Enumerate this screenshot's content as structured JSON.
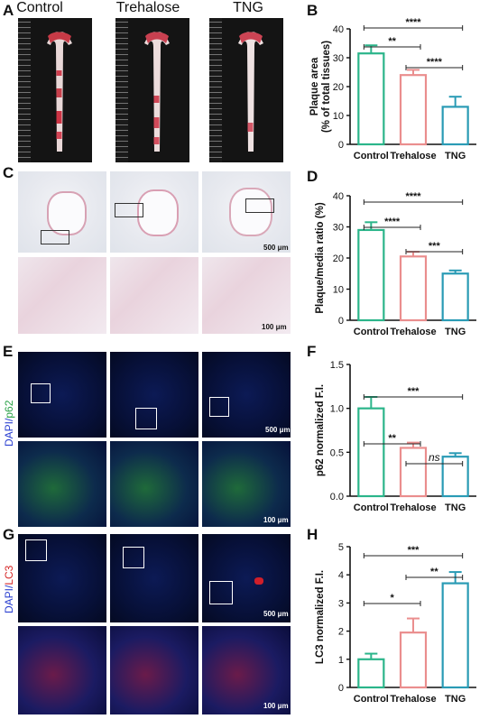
{
  "panels": {
    "A": "A",
    "B": "B",
    "C": "C",
    "D": "D",
    "E": "E",
    "F": "F",
    "G": "G",
    "H": "H"
  },
  "groups": [
    "Control",
    "Trehalose",
    "TNG"
  ],
  "stain_labels": {
    "E_dapi": "DAPI/",
    "E_marker": "p62",
    "G_dapi": "DAPI/",
    "G_marker": "LC3"
  },
  "scalebars": {
    "C_top": "500 μm",
    "C_bottom": "100 μm",
    "E_top": "500 μm",
    "E_bottom": "100 μm",
    "G_top": "500 μm",
    "G_bottom": "100 μm"
  },
  "colors": {
    "control": "#2bb58a",
    "trehalose": "#ea8e8e",
    "tng": "#2a9bb5"
  },
  "chart_data": [
    {
      "panel": "B",
      "type": "bar",
      "ylabel": "Plaque area (% of total tissues)",
      "categories": [
        "Control",
        "Trehalose",
        "TNG"
      ],
      "values": [
        31.5,
        24,
        13
      ],
      "errors": [
        2.8,
        1.8,
        3.5
      ],
      "ylim": [
        0,
        40
      ],
      "yticks": [
        0,
        10,
        20,
        30,
        40
      ],
      "significance": [
        {
          "from": 0,
          "to": 2,
          "label": "****"
        },
        {
          "from": 0,
          "to": 1,
          "label": "**"
        },
        {
          "from": 1,
          "to": 2,
          "label": "****"
        }
      ]
    },
    {
      "panel": "D",
      "type": "bar",
      "ylabel": "Plaque/media ratio (%)",
      "categories": [
        "Control",
        "Trehalose",
        "TNG"
      ],
      "values": [
        29,
        20.5,
        15
      ],
      "errors": [
        2.5,
        1.5,
        1.0
      ],
      "ylim": [
        0,
        40
      ],
      "yticks": [
        0,
        10,
        20,
        30,
        40
      ],
      "significance": [
        {
          "from": 0,
          "to": 2,
          "label": "****"
        },
        {
          "from": 0,
          "to": 1,
          "label": "****"
        },
        {
          "from": 1,
          "to": 2,
          "label": "***"
        }
      ]
    },
    {
      "panel": "F",
      "type": "bar",
      "ylabel": "p62 normalized F.I.",
      "categories": [
        "Control",
        "Trehalose",
        "TNG"
      ],
      "values": [
        1.0,
        0.55,
        0.45
      ],
      "errors": [
        0.13,
        0.06,
        0.04
      ],
      "ylim": [
        0,
        1.5
      ],
      "yticks": [
        0.0,
        0.5,
        1.0,
        1.5
      ],
      "significance": [
        {
          "from": 0,
          "to": 2,
          "label": "***"
        },
        {
          "from": 0,
          "to": 1,
          "label": "**"
        },
        {
          "from": 1,
          "to": 2,
          "label": "ns"
        }
      ]
    },
    {
      "panel": "H",
      "type": "bar",
      "ylabel": "LC3 normalized F.I.",
      "categories": [
        "Control",
        "Trehalose",
        "TNG"
      ],
      "values": [
        1.0,
        1.95,
        3.7
      ],
      "errors": [
        0.2,
        0.5,
        0.4
      ],
      "ylim": [
        0,
        5
      ],
      "yticks": [
        0,
        1,
        2,
        3,
        4,
        5
      ],
      "significance": [
        {
          "from": 0,
          "to": 2,
          "label": "***"
        },
        {
          "from": 1,
          "to": 2,
          "label": "**"
        },
        {
          "from": 0,
          "to": 1,
          "label": "*"
        }
      ]
    }
  ]
}
